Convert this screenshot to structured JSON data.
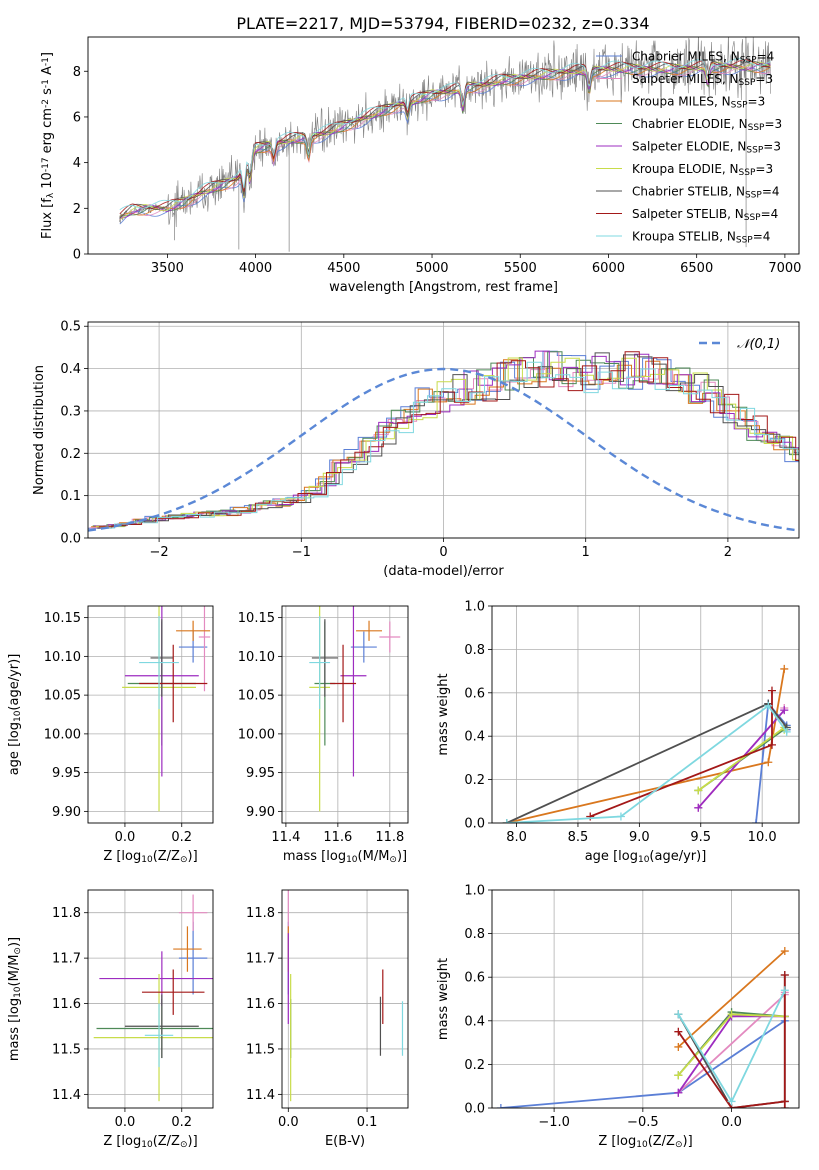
{
  "title": "PLATE=2217, MJD=53794, FIBERID=0232, z=0.334",
  "colors": {
    "Chabrier MILES": "#5b7fd6",
    "Salpeter MILES": "#e38ac0",
    "Kroupa MILES": "#d9771e",
    "Chabrier ELODIE": "#4e8a57",
    "Salpeter ELODIE": "#9d2cc0",
    "Kroupa ELODIE": "#c8dc4a",
    "Chabrier STELIB": "#505050",
    "Salpeter STELIB": "#a31818",
    "Kroupa STELIB": "#7fd8e0",
    "observed": "#808080",
    "gaussian": "#5b88d6"
  },
  "chart_data": [
    {
      "id": "spectrum",
      "type": "line",
      "xlabel": "wavelength [Angstrom, rest frame]",
      "ylabel": "Flux [$f_\\lambda 10^{-17}$ erg cm$^{-2}$ s$^{-1}$ A$^{-1}$]",
      "xlim": [
        3050,
        7080
      ],
      "ylim": [
        0,
        9.5
      ],
      "xticks": [
        3500,
        4000,
        4500,
        5000,
        5500,
        6000,
        6500,
        7000
      ],
      "yticks": [
        0,
        2,
        4,
        6,
        8
      ],
      "legend": [
        "Chabrier MILES, N$_{SSP}$=4",
        "Salpeter MILES, N$_{SSP}$=3",
        "Kroupa MILES, N$_{SSP}$=3",
        "Chabrier ELODIE, N$_{SSP}$=3",
        "Salpeter ELODIE, N$_{SSP}$=3",
        "Kroupa ELODIE, N$_{SSP}$=3",
        "Chabrier STELIB, N$_{SSP}$=4",
        "Salpeter STELIB, N$_{SSP}$=4",
        "Kroupa STELIB, N$_{SSP}$=4"
      ],
      "legend_loc": "upper right",
      "continuum_x": [
        3230,
        3300,
        3400,
        3500,
        3600,
        3700,
        3800,
        3900,
        4000,
        4100,
        4200,
        4300,
        4400,
        4500,
        4600,
        4700,
        4800,
        4900,
        5000,
        5100,
        5200,
        5300,
        5400,
        5500,
        5600,
        5700,
        5800,
        5900,
        6000,
        6200,
        6400,
        6600,
        6800,
        6920
      ],
      "continuum_y": [
        1.6,
        1.9,
        2.0,
        2.0,
        2.3,
        2.7,
        3.0,
        3.3,
        4.6,
        4.8,
        5.0,
        5.1,
        5.3,
        5.6,
        5.9,
        6.2,
        6.5,
        6.7,
        7.0,
        7.1,
        7.3,
        7.4,
        7.6,
        7.7,
        7.8,
        7.9,
        8.0,
        8.0,
        8.1,
        8.1,
        8.1,
        8.2,
        8.2,
        8.2
      ]
    },
    {
      "id": "residuals",
      "type": "line",
      "xlabel": "(data-model)/error",
      "ylabel": "Normed distribution",
      "xlim": [
        -2.5,
        2.5
      ],
      "ylim": [
        0,
        0.51
      ],
      "xticks": [
        -2,
        -1,
        0,
        1,
        2
      ],
      "yticks": [
        0.0,
        0.1,
        0.2,
        0.3,
        0.4,
        0.5
      ],
      "legend": [
        "$\\mathcal{N}(0,1)$"
      ],
      "legend_loc": "upper right",
      "hist_bin_width": 0.1,
      "hist_base": [
        0.026,
        0.03,
        0.036,
        0.04,
        0.046,
        0.05,
        0.052,
        0.055,
        0.058,
        0.06,
        0.065,
        0.075,
        0.08,
        0.085,
        0.095,
        0.11,
        0.14,
        0.165,
        0.19,
        0.215,
        0.245,
        0.275,
        0.3,
        0.32,
        0.335,
        0.35,
        0.355,
        0.36,
        0.37,
        0.385,
        0.395,
        0.405,
        0.4,
        0.395,
        0.39,
        0.395,
        0.4,
        0.395,
        0.395,
        0.39,
        0.38,
        0.375,
        0.36,
        0.335,
        0.305,
        0.28,
        0.26,
        0.235,
        0.215,
        0.2,
        0.185,
        0.17,
        0.15,
        0.135,
        0.12,
        0.11,
        0.1,
        0.085,
        0.08,
        0.07,
        0.065,
        0.06,
        0.05,
        0.04,
        0.035,
        0.03,
        0.028,
        0.025,
        0.024,
        0.022,
        0.02,
        0.018,
        0.016,
        0.015,
        0.014,
        0.013,
        0.012,
        0.012,
        0.011,
        0.01
      ]
    },
    {
      "id": "age-Z",
      "type": "scatter",
      "xlabel": "Z [log$_{10}$(Z/Z$_\\odot$)]",
      "ylabel": "age  [log$_{10}$(age/yr)]",
      "xlim": [
        -0.13,
        0.31
      ],
      "ylim": [
        9.885,
        10.165
      ],
      "xticks": [
        0.0,
        0.2
      ],
      "yticks": [
        9.9,
        9.95,
        10.0,
        10.05,
        10.1,
        10.15
      ],
      "points": [
        {
          "model": "Chabrier MILES",
          "x": 0.24,
          "y": 10.112,
          "xerr": 0.05,
          "yerr": 0.02
        },
        {
          "model": "Salpeter MILES",
          "x": 0.28,
          "y": 10.125,
          "xerr": 0.02,
          "yerr": 0.07
        },
        {
          "model": "Kroupa MILES",
          "x": 0.24,
          "y": 10.133,
          "xerr": 0.06,
          "yerr": 0.013
        },
        {
          "model": "Chabrier ELODIE",
          "x": 0.13,
          "y": 10.065,
          "xerr": 0.12,
          "yerr": 0.08
        },
        {
          "model": "Salpeter ELODIE",
          "x": 0.13,
          "y": 10.075,
          "xerr": 0.13,
          "yerr": 0.13
        },
        {
          "model": "Kroupa ELODIE",
          "x": 0.12,
          "y": 10.06,
          "xerr": 0.13,
          "yerr": 0.16
        },
        {
          "model": "Chabrier STELIB",
          "x": 0.13,
          "y": 10.098,
          "xerr": 0.04,
          "yerr": 0.05
        },
        {
          "model": "Salpeter STELIB",
          "x": 0.17,
          "y": 10.065,
          "xerr": 0.12,
          "yerr": 0.05
        },
        {
          "model": "Kroupa STELIB",
          "x": 0.12,
          "y": 10.092,
          "xerr": 0.07,
          "yerr": 0.06
        }
      ]
    },
    {
      "id": "age-mass",
      "type": "scatter",
      "xlabel": "mass [log$_{10}$(M/M$_\\odot$)]",
      "ylabel": "",
      "xlim": [
        11.385,
        11.87
      ],
      "ylim": [
        9.885,
        10.165
      ],
      "xticks": [
        11.4,
        11.6,
        11.8
      ],
      "yticks": [
        9.9,
        9.95,
        10.0,
        10.05,
        10.1,
        10.15
      ],
      "points": [
        {
          "model": "Chabrier MILES",
          "x": 11.7,
          "y": 10.112,
          "xerr": 0.05,
          "yerr": 0.02
        },
        {
          "model": "Salpeter MILES",
          "x": 11.8,
          "y": 10.125,
          "xerr": 0.04,
          "yerr": 0.02
        },
        {
          "model": "Kroupa MILES",
          "x": 11.72,
          "y": 10.133,
          "xerr": 0.05,
          "yerr": 0.013
        },
        {
          "model": "Chabrier ELODIE",
          "x": 11.55,
          "y": 10.065,
          "xerr": 0.04,
          "yerr": 0.08
        },
        {
          "model": "Salpeter ELODIE",
          "x": 11.66,
          "y": 10.075,
          "xerr": 0.05,
          "yerr": 0.13
        },
        {
          "model": "Kroupa ELODIE",
          "x": 11.53,
          "y": 10.06,
          "xerr": 0.04,
          "yerr": 0.16
        },
        {
          "model": "Chabrier STELIB",
          "x": 11.55,
          "y": 10.098,
          "xerr": 0.05,
          "yerr": 0.05
        },
        {
          "model": "Salpeter STELIB",
          "x": 11.62,
          "y": 10.065,
          "xerr": 0.05,
          "yerr": 0.05
        },
        {
          "model": "Kroupa STELIB",
          "x": 11.53,
          "y": 10.092,
          "xerr": 0.04,
          "yerr": 0.06
        }
      ]
    },
    {
      "id": "weight-age",
      "type": "line",
      "xlabel": "age  [log$_{10}$(age/yr)]",
      "ylabel": "mass weight",
      "xlim": [
        7.8,
        10.3
      ],
      "ylim": [
        0,
        1.0
      ],
      "xticks": [
        8.0,
        8.5,
        9.0,
        9.5,
        10.0
      ],
      "yticks": [
        0.0,
        0.2,
        0.4,
        0.6,
        0.8,
        1.0
      ],
      "series": [
        {
          "model": "Chabrier MILES",
          "x": [
            9.95,
            10.05,
            10.2,
            10.2
          ],
          "y": [
            0.0,
            0.55,
            0.45,
            0.43
          ]
        },
        {
          "model": "Salpeter MILES",
          "x": [
            9.48,
            10.18,
            10.18
          ],
          "y": [
            0.07,
            0.52,
            0.53
          ]
        },
        {
          "model": "Kroupa MILES",
          "x": [
            7.92,
            10.05,
            10.18
          ],
          "y": [
            0.0,
            0.28,
            0.71
          ]
        },
        {
          "model": "Chabrier ELODIE",
          "x": [
            9.48,
            10.2
          ],
          "y": [
            0.15,
            0.44
          ]
        },
        {
          "model": "Salpeter ELODIE",
          "x": [
            9.48,
            10.18
          ],
          "y": [
            0.07,
            0.52
          ]
        },
        {
          "model": "Kroupa ELODIE",
          "x": [
            9.48,
            10.18,
            10.18
          ],
          "y": [
            0.15,
            0.44,
            0.43
          ]
        },
        {
          "model": "Chabrier STELIB",
          "x": [
            7.92,
            10.05,
            10.2
          ],
          "y": [
            0.0,
            0.55,
            0.44
          ]
        },
        {
          "model": "Salpeter STELIB",
          "x": [
            8.6,
            10.08,
            10.08
          ],
          "y": [
            0.03,
            0.36,
            0.61
          ]
        },
        {
          "model": "Kroupa STELIB",
          "x": [
            7.92,
            8.85,
            10.05,
            10.2
          ],
          "y": [
            0.0,
            0.03,
            0.54,
            0.42
          ]
        }
      ]
    },
    {
      "id": "mass-Z",
      "type": "scatter",
      "xlabel": "Z [log$_{10}$(Z/Z$_\\odot$)]",
      "ylabel": "mass [log$_{10}$(M/M$_\\odot$)]",
      "xlim": [
        -0.13,
        0.31
      ],
      "ylim": [
        11.37,
        11.85
      ],
      "xticks": [
        0.0,
        0.2
      ],
      "yticks": [
        11.4,
        11.5,
        11.6,
        11.7,
        11.8
      ],
      "points": [
        {
          "model": "Chabrier MILES",
          "x": 0.24,
          "y": 11.7,
          "xerr": 0.05,
          "yerr": 0.08
        },
        {
          "model": "Salpeter MILES",
          "x": 0.24,
          "y": 11.8,
          "xerr": 0.05,
          "yerr": 0.04
        },
        {
          "model": "Kroupa MILES",
          "x": 0.22,
          "y": 11.72,
          "xerr": 0.05,
          "yerr": 0.05
        },
        {
          "model": "Chabrier ELODIE",
          "x": 0.13,
          "y": 11.545,
          "xerr": 0.23,
          "yerr": 0.065
        },
        {
          "model": "Salpeter ELODIE",
          "x": 0.13,
          "y": 11.655,
          "xerr": 0.22,
          "yerr": 0.06
        },
        {
          "model": "Kroupa ELODIE",
          "x": 0.12,
          "y": 11.525,
          "xerr": 0.23,
          "yerr": 0.14
        },
        {
          "model": "Chabrier STELIB",
          "x": 0.13,
          "y": 11.55,
          "xerr": 0.13,
          "yerr": 0.07
        },
        {
          "model": "Salpeter STELIB",
          "x": 0.17,
          "y": 11.625,
          "xerr": 0.11,
          "yerr": 0.05
        },
        {
          "model": "Kroupa STELIB",
          "x": 0.12,
          "y": 11.53,
          "xerr": 0.05,
          "yerr": 0.07
        }
      ]
    },
    {
      "id": "mass-EBV",
      "type": "scatter",
      "xlabel": "E(B-V)",
      "ylabel": "",
      "xlim": [
        -0.008,
        0.152
      ],
      "ylim": [
        11.37,
        11.85
      ],
      "xticks": [
        0.0,
        0.1
      ],
      "yticks": [
        11.4,
        11.5,
        11.6,
        11.7,
        11.8
      ],
      "points": [
        {
          "model": "Chabrier MILES",
          "x": 0.0,
          "y": 11.7,
          "xerr": 0.0,
          "yerr": 0.08
        },
        {
          "model": "Salpeter MILES",
          "x": 0.0,
          "y": 11.8,
          "xerr": 0.0,
          "yerr": 0.05
        },
        {
          "model": "Kroupa MILES",
          "x": 0.0,
          "y": 11.72,
          "xerr": 0.0,
          "yerr": 0.05
        },
        {
          "model": "Chabrier ELODIE",
          "x": 0.003,
          "y": 11.545,
          "xerr": 0.0,
          "yerr": 0.065
        },
        {
          "model": "Salpeter ELODIE",
          "x": 0.0,
          "y": 11.655,
          "xerr": 0.0,
          "yerr": 0.1
        },
        {
          "model": "Kroupa ELODIE",
          "x": 0.003,
          "y": 11.525,
          "xerr": 0.0,
          "yerr": 0.14
        },
        {
          "model": "Chabrier STELIB",
          "x": 0.117,
          "y": 11.55,
          "xerr": 0.0,
          "yerr": 0.065
        },
        {
          "model": "Salpeter STELIB",
          "x": 0.12,
          "y": 11.615,
          "xerr": 0.0,
          "yerr": 0.06
        },
        {
          "model": "Kroupa STELIB",
          "x": 0.145,
          "y": 11.545,
          "xerr": 0.0,
          "yerr": 0.06
        }
      ]
    },
    {
      "id": "weight-Z",
      "type": "line",
      "xlabel": "Z [log$_{10}$(Z/Z$_\\odot$)]",
      "ylabel": "mass weight",
      "xlim": [
        -1.35,
        0.38
      ],
      "ylim": [
        0,
        1.0
      ],
      "xticks": [
        -1.0,
        -0.5,
        0.0
      ],
      "yticks": [
        0.0,
        0.2,
        0.4,
        0.6,
        0.8,
        1.0
      ],
      "series": [
        {
          "model": "Chabrier MILES",
          "x": [
            -1.3,
            -0.3,
            0.3
          ],
          "y": [
            0.0,
            0.07,
            0.4
          ]
        },
        {
          "model": "Salpeter MILES",
          "x": [
            -0.3,
            0.3,
            0.3
          ],
          "y": [
            0.07,
            0.52,
            0.53
          ]
        },
        {
          "model": "Kroupa MILES",
          "x": [
            -0.3,
            0.3
          ],
          "y": [
            0.28,
            0.72
          ]
        },
        {
          "model": "Chabrier ELODIE",
          "x": [
            -0.3,
            0.0,
            0.3
          ],
          "y": [
            0.15,
            0.44,
            0.42
          ]
        },
        {
          "model": "Salpeter ELODIE",
          "x": [
            -0.3,
            0.0,
            0.3
          ],
          "y": [
            0.07,
            0.42,
            0.42
          ]
        },
        {
          "model": "Kroupa ELODIE",
          "x": [
            -0.3,
            0.0,
            0.3
          ],
          "y": [
            0.15,
            0.43,
            0.42
          ]
        },
        {
          "model": "Chabrier STELIB",
          "x": [
            -0.3,
            0.0,
            0.3,
            0.3
          ],
          "y": [
            0.43,
            0.0,
            0.03,
            0.61
          ]
        },
        {
          "model": "Salpeter STELIB",
          "x": [
            -0.3,
            0.0,
            0.3,
            0.3,
            0.3
          ],
          "y": [
            0.35,
            0.0,
            0.03,
            0.61,
            0.0
          ]
        },
        {
          "model": "Kroupa STELIB",
          "x": [
            -0.3,
            0.0,
            0.3
          ],
          "y": [
            0.43,
            0.03,
            0.54
          ]
        }
      ]
    }
  ]
}
